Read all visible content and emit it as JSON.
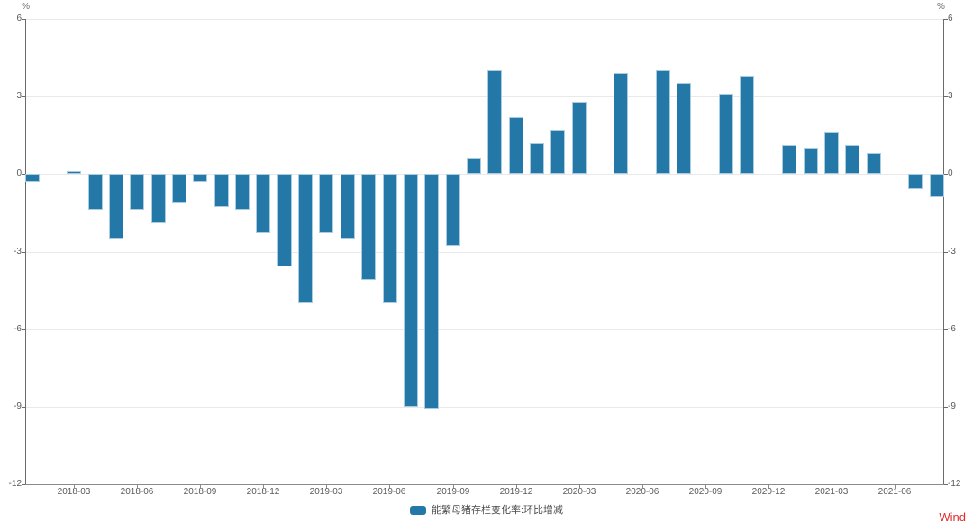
{
  "chart_data": {
    "type": "bar",
    "title": "",
    "categories": [
      "2018-01",
      "2018-02",
      "2018-03",
      "2018-04",
      "2018-05",
      "2018-06",
      "2018-07",
      "2018-08",
      "2018-09",
      "2018-10",
      "2018-11",
      "2018-12",
      "2019-01",
      "2019-02",
      "2019-03",
      "2019-04",
      "2019-05",
      "2019-06",
      "2019-07",
      "2019-08",
      "2019-09",
      "2019-10",
      "2019-11",
      "2019-12",
      "2020-01",
      "2020-02",
      "2020-03",
      "2020-04",
      "2020-05",
      "2020-06",
      "2020-07",
      "2020-08",
      "2020-09",
      "2020-10",
      "2020-11",
      "2020-12",
      "2021-01",
      "2021-02",
      "2021-03",
      "2021-04",
      "2021-05",
      "2021-06",
      "2021-07",
      "2021-08"
    ],
    "series": [
      {
        "name": "能繁母猪存栏变化率:环比增减",
        "values": [
          -0.3,
          0.0,
          0.1,
          -1.4,
          -2.5,
          -1.4,
          -1.9,
          -1.1,
          -0.3,
          -1.3,
          -1.4,
          -2.3,
          -3.6,
          -5.0,
          -2.3,
          -2.5,
          -4.1,
          -5.0,
          -9.0,
          -9.1,
          -2.8,
          0.6,
          4.0,
          2.2,
          1.2,
          1.7,
          2.8,
          0.0,
          3.9,
          0.0,
          4.0,
          3.5,
          0.0,
          3.1,
          3.8,
          0.0,
          1.1,
          1.0,
          1.6,
          1.1,
          0.8,
          0.0,
          -0.6,
          -0.9
        ]
      }
    ],
    "x_tick_labels": [
      "2018-03",
      "2018-06",
      "2018-09",
      "2018-12",
      "2019-03",
      "2019-06",
      "2019-09",
      "2019-12",
      "2020-03",
      "2020-06",
      "2020-09",
      "2020-12",
      "2021-03",
      "2021-06"
    ],
    "y_ticks": [
      6,
      3,
      0,
      -3,
      -6,
      -9,
      -12
    ],
    "ylim": [
      -12,
      6
    ],
    "ylabel": "%",
    "xlabel": "",
    "grid": true,
    "legend_position": "bottom-center",
    "bar_color": "#2478A8",
    "bar_border_color": "#A9CCE0"
  },
  "axes": {
    "left_unit": "%",
    "right_unit": "%"
  },
  "legend": {
    "label": "能繁母猪存栏变化率:环比增减"
  },
  "branding": {
    "source_label": "Wind",
    "color": "#E02E2E"
  }
}
